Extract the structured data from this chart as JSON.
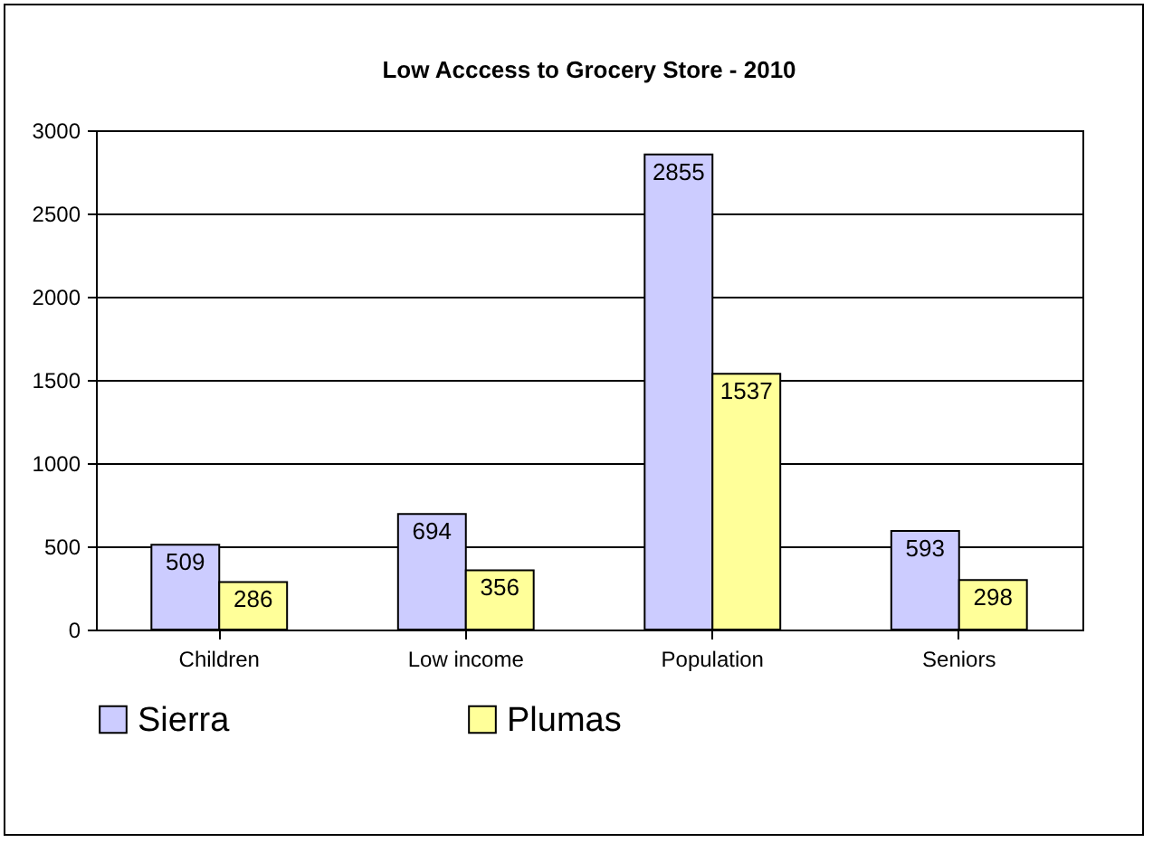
{
  "chart_data": {
    "type": "bar",
    "title": "Low Acccess to Grocery Store - 2010",
    "categories": [
      "Children",
      "Low income",
      "Population",
      "Seniors"
    ],
    "series": [
      {
        "name": "Sierra",
        "color": "#ccccff",
        "values": [
          509,
          694,
          2855,
          593
        ]
      },
      {
        "name": "Plumas",
        "color": "#ffff99",
        "values": [
          286,
          356,
          1537,
          298
        ]
      }
    ],
    "ylim": [
      0,
      3000
    ],
    "yticks": [
      0,
      500,
      {
        "value": 1000,
        "label": "1000"
      },
      {
        "value": 1500,
        "label": "1500"
      },
      {
        "value": 2000,
        "label": "2000"
      },
      {
        "value": 2500,
        "label": "2500"
      },
      {
        "value": 3000,
        "label": "3000"
      }
    ],
    "grid": "y",
    "legend": "bottom",
    "data_labels": true
  }
}
